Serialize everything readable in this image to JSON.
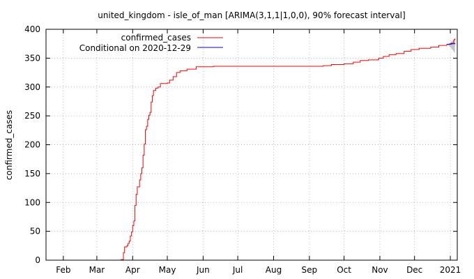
{
  "chart_data": {
    "type": "line",
    "title": "united_kingdom - isle_of_man [ARIMA(3,1,1|1,0,0), 90% forecast interval]",
    "xlabel": "",
    "ylabel": "confirmed_cases",
    "x_range": [
      "2021-01-17",
      "2021-01-07"
    ],
    "xlim": [
      "2020-01-17",
      "2021-01-07"
    ],
    "ylim": [
      0,
      400
    ],
    "grid": true,
    "legend_position": "top-right",
    "y_ticks": [
      0,
      50,
      100,
      150,
      200,
      250,
      300,
      350,
      400
    ],
    "x_ticks": [
      {
        "label": "Feb",
        "date": "2020-02-01"
      },
      {
        "label": "Mar",
        "date": "2020-03-01"
      },
      {
        "label": "Apr",
        "date": "2020-04-01"
      },
      {
        "label": "May",
        "date": "2020-05-01"
      },
      {
        "label": "Jun",
        "date": "2020-06-01"
      },
      {
        "label": "Jul",
        "date": "2020-07-01"
      },
      {
        "label": "Aug",
        "date": "2020-08-01"
      },
      {
        "label": "Sep",
        "date": "2020-09-01"
      },
      {
        "label": "Oct",
        "date": "2020-10-01"
      },
      {
        "label": "Nov",
        "date": "2020-11-01"
      },
      {
        "label": "Dec",
        "date": "2020-12-01"
      },
      {
        "label": "2021",
        "date": "2021-01-01"
      }
    ],
    "series": [
      {
        "name": "confirmed_cases",
        "color": "#ff0000",
        "points": [
          [
            "2020-01-22",
            0
          ],
          [
            "2020-03-20",
            0
          ],
          [
            "2020-03-22",
            1
          ],
          [
            "2020-03-24",
            13
          ],
          [
            "2020-03-25",
            23
          ],
          [
            "2020-03-27",
            25
          ],
          [
            "2020-03-28",
            29
          ],
          [
            "2020-03-29",
            33
          ],
          [
            "2020-03-30",
            42
          ],
          [
            "2020-03-31",
            49
          ],
          [
            "2020-04-01",
            60
          ],
          [
            "2020-04-02",
            68
          ],
          [
            "2020-04-03",
            95
          ],
          [
            "2020-04-04",
            114
          ],
          [
            "2020-04-05",
            127
          ],
          [
            "2020-04-06",
            127
          ],
          [
            "2020-04-07",
            139
          ],
          [
            "2020-04-08",
            150
          ],
          [
            "2020-04-09",
            160
          ],
          [
            "2020-04-10",
            182
          ],
          [
            "2020-04-11",
            201
          ],
          [
            "2020-04-12",
            226
          ],
          [
            "2020-04-13",
            232
          ],
          [
            "2020-04-14",
            244
          ],
          [
            "2020-04-15",
            251
          ],
          [
            "2020-04-16",
            256
          ],
          [
            "2020-04-17",
            274
          ],
          [
            "2020-04-18",
            285
          ],
          [
            "2020-04-19",
            294
          ],
          [
            "2020-04-21",
            298
          ],
          [
            "2020-04-23",
            300
          ],
          [
            "2020-04-25",
            306
          ],
          [
            "2020-05-01",
            307
          ],
          [
            "2020-05-03",
            312
          ],
          [
            "2020-05-06",
            318
          ],
          [
            "2020-05-09",
            325
          ],
          [
            "2020-05-12",
            328
          ],
          [
            "2020-05-18",
            331
          ],
          [
            "2020-05-26",
            335
          ],
          [
            "2020-06-10",
            336
          ],
          [
            "2020-09-05",
            336
          ],
          [
            "2020-09-13",
            337
          ],
          [
            "2020-09-20",
            339
          ],
          [
            "2020-10-01",
            340
          ],
          [
            "2020-10-09",
            343
          ],
          [
            "2020-10-15",
            346
          ],
          [
            "2020-10-22",
            347
          ],
          [
            "2020-10-31",
            350
          ],
          [
            "2020-11-04",
            353
          ],
          [
            "2020-11-09",
            356
          ],
          [
            "2020-11-15",
            358
          ],
          [
            "2020-11-22",
            362
          ],
          [
            "2020-11-28",
            365
          ],
          [
            "2020-12-05",
            367
          ],
          [
            "2020-12-15",
            369
          ],
          [
            "2020-12-22",
            372
          ],
          [
            "2020-12-29",
            374
          ],
          [
            "2021-01-02",
            376
          ],
          [
            "2021-01-04",
            382
          ],
          [
            "2021-01-05",
            384
          ]
        ]
      },
      {
        "name": "Conditional on 2020-12-29",
        "color": "#0000ff",
        "points": [
          [
            "2020-12-29",
            374
          ],
          [
            "2021-01-01",
            375
          ],
          [
            "2021-01-03",
            375
          ],
          [
            "2021-01-05",
            376
          ]
        ],
        "interval_upper": [
          [
            "2020-12-29",
            374
          ],
          [
            "2021-01-01",
            377
          ],
          [
            "2021-01-03",
            380
          ],
          [
            "2021-01-05",
            382
          ]
        ],
        "interval_lower": [
          [
            "2020-12-29",
            374
          ],
          [
            "2021-01-01",
            369
          ],
          [
            "2021-01-03",
            364
          ],
          [
            "2021-01-05",
            358
          ]
        ],
        "interval_color": "#c0c0c0"
      }
    ]
  }
}
